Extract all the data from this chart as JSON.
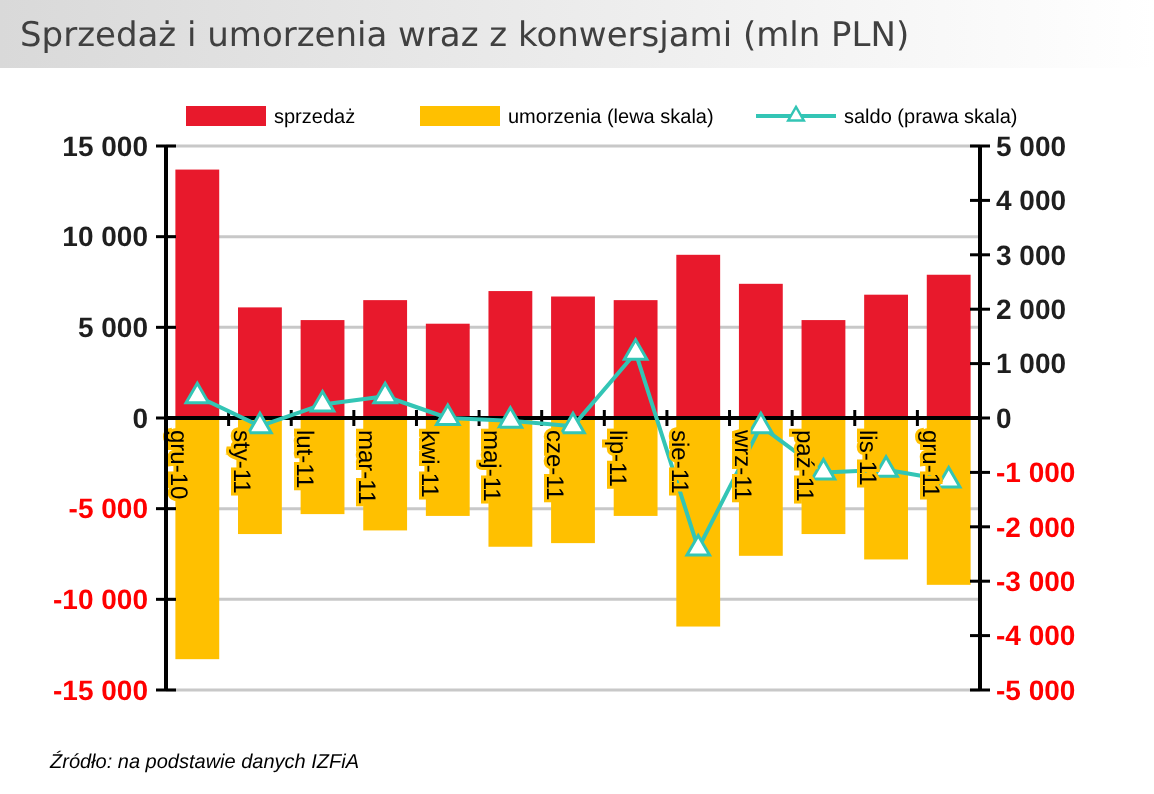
{
  "chart_data": {
    "type": "bar",
    "title": "Sprzedaż i umorzenia wraz z konwersjami (mln PLN)",
    "categories": [
      "gru-10",
      "sty-11",
      "lut-11",
      "mar-11",
      "kwi-11",
      "maj-11",
      "cze-11",
      "lip-11",
      "sie-11",
      "wrz-11",
      "paź-11",
      "lis-11",
      "gru-11"
    ],
    "stacked": true,
    "series": [
      {
        "name": "sprzedaż",
        "color": "#e8192c",
        "values": [
          13700,
          6100,
          5400,
          6500,
          5200,
          7000,
          6700,
          6500,
          9000,
          7400,
          5400,
          6800,
          7900
        ]
      },
      {
        "name": "umorzenia (lewa skala)",
        "color": "#ffc000",
        "values": [
          -13300,
          -6400,
          -5300,
          -6200,
          -5400,
          -7100,
          -6900,
          -5400,
          -11500,
          -7600,
          -6400,
          -7800,
          -9200
        ]
      },
      {
        "name": "saldo (prawa skala)",
        "type": "line",
        "axis": "y2",
        "color": "#33c5b5",
        "marker": "triangle",
        "values": [
          400,
          -150,
          250,
          400,
          0,
          -50,
          -150,
          1200,
          -2400,
          -150,
          -1000,
          -950,
          -1150
        ]
      }
    ],
    "ylim": [
      -15000,
      15000
    ],
    "yticks": [
      {
        "value": -15000,
        "label": "-15 000"
      },
      {
        "value": -10000,
        "label": "-10 000"
      },
      {
        "value": -5000,
        "label": "-5 000"
      },
      0,
      {
        "value": 5000,
        "label": "5 000"
      },
      {
        "value": 10000,
        "label": "10 000"
      },
      {
        "value": 15000,
        "label": "15 000"
      }
    ],
    "y2lim": [
      -5000,
      5000
    ],
    "y2ticks": [
      {
        "value": -5000,
        "label": "-5 000"
      },
      {
        "value": -4000,
        "label": "-4 000"
      },
      {
        "value": -3000,
        "label": "-3 000"
      },
      {
        "value": -2000,
        "label": "-2 000"
      },
      {
        "value": -1000,
        "label": "-1 000"
      },
      0,
      {
        "value": 1000,
        "label": "1 000"
      },
      {
        "value": 2000,
        "label": "2 000"
      },
      {
        "value": 3000,
        "label": "3 000"
      },
      {
        "value": 4000,
        "label": "4 000"
      },
      {
        "value": 5000,
        "label": "5 000"
      }
    ],
    "grid": "y",
    "legend": "top",
    "annotations": [
      "Źródło: na podstawie danych IZFiA"
    ]
  }
}
